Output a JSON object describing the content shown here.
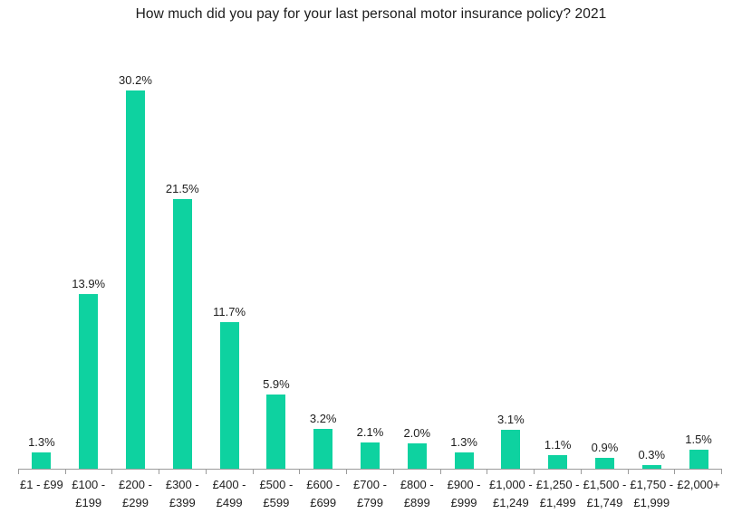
{
  "title": "How much did you pay for your last personal motor insurance policy? 2021",
  "colors": {
    "bar": "#0ed2a0",
    "axis": "#9b9b9b",
    "text": "#1e1e1e",
    "background": "#ffffff"
  },
  "chart_data": {
    "type": "bar",
    "title": "How much did you pay for your last personal motor insurance policy? 2021",
    "categories": [
      "£1 - £99",
      "£100 - £199",
      "£200 - £299",
      "£300 - £399",
      "£400 - £499",
      "£500 - £599",
      "£600 - £699",
      "£700 - £799",
      "£800 - £899",
      "£900 - £999",
      "£1,000 - £1,249",
      "£1,250 - £1,499",
      "£1,500 - £1,749",
      "£1,750 - £1,999",
      "£2,000+"
    ],
    "values": [
      1.3,
      13.9,
      30.2,
      21.5,
      11.7,
      5.9,
      3.2,
      2.1,
      2.0,
      1.3,
      3.1,
      1.1,
      0.9,
      0.3,
      1.5
    ],
    "value_labels": [
      "1.3%",
      "13.9%",
      "30.2%",
      "21.5%",
      "11.7%",
      "5.9%",
      "3.2%",
      "2.1%",
      "2.0%",
      "1.3%",
      "3.1%",
      "1.1%",
      "0.9%",
      "0.3%",
      "1.5%"
    ],
    "xtick_display": [
      "£1 - £99",
      "£100 -\n£199",
      "£200 -\n£299",
      "£300 -\n£399",
      "£400 -\n£499",
      "£500 -\n£599",
      "£600 -\n£699",
      "£700 -\n£799",
      "£800 -\n£899",
      "£900 -\n£999",
      "£1,000 -\n£1,249",
      "£1,250 -\n£1,499",
      "£1,500 -\n£1,749",
      "£1,750 -\n£1,999",
      "£2,000+"
    ],
    "xlabel": "",
    "ylabel": "",
    "ylim": [
      0,
      31
    ],
    "grid": false,
    "legend": "none",
    "y_axis_visible": false,
    "data_labels": "above bars"
  }
}
